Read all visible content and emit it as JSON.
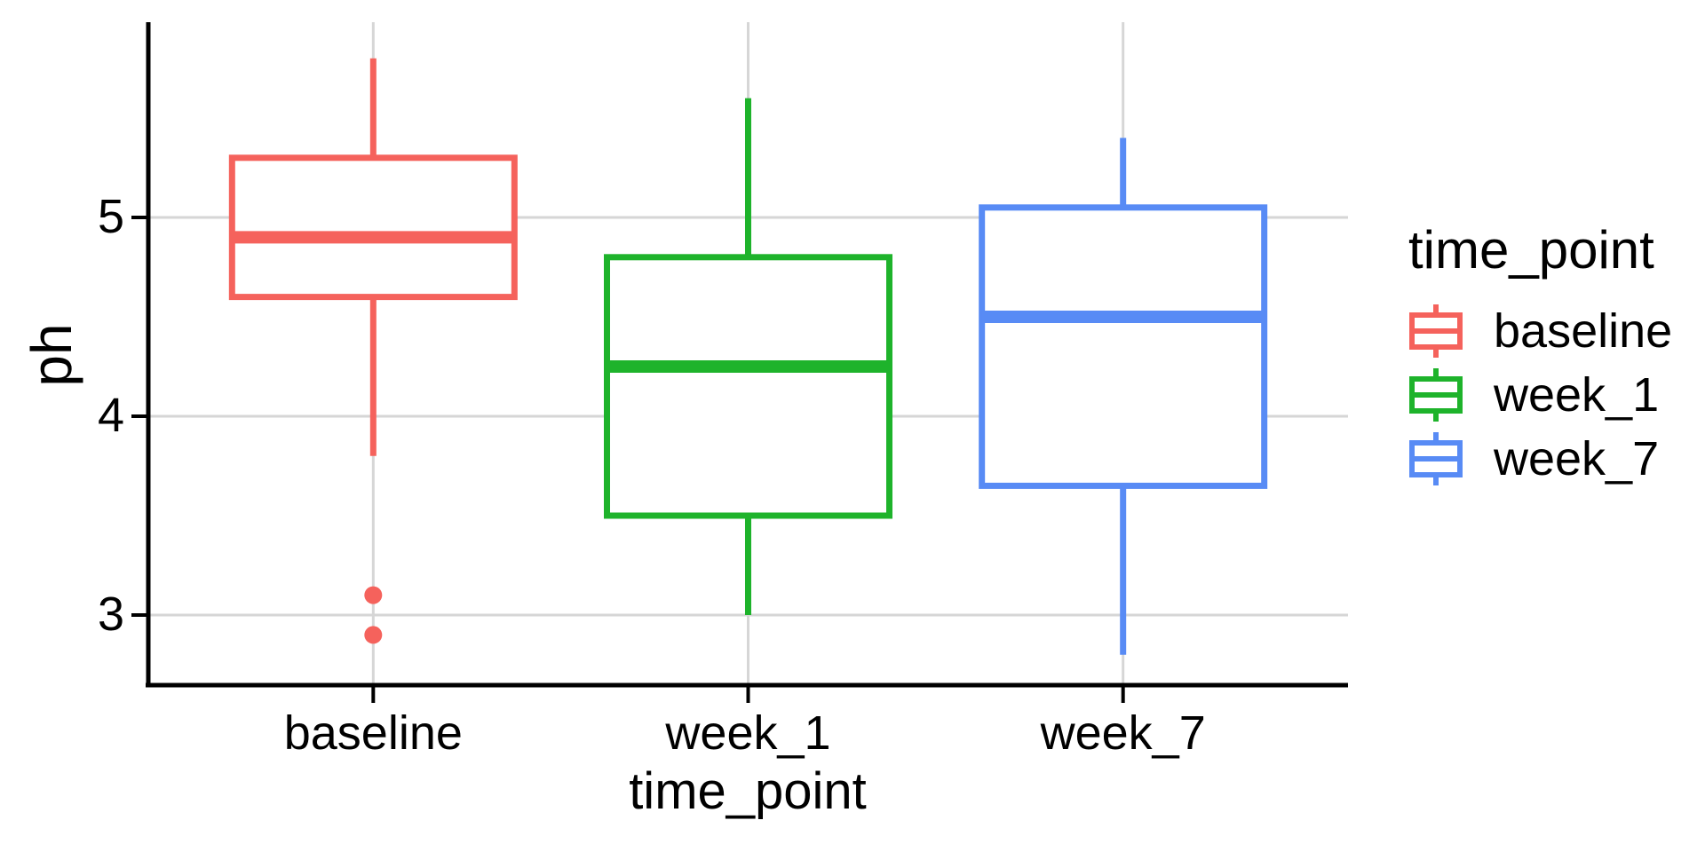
{
  "chart_data": {
    "type": "boxplot",
    "title": "",
    "xlabel": "time_point",
    "ylabel": "ph",
    "categories": [
      "baseline",
      "week_1",
      "week_7"
    ],
    "y_ticks": [
      3,
      4,
      5
    ],
    "ylim": [
      2.65,
      5.98
    ],
    "grid": {
      "horizontal": true,
      "vertical": true,
      "color": "#D6D6D6"
    },
    "legend": {
      "title": "time_point",
      "position": "right"
    },
    "series": [
      {
        "name": "baseline",
        "color": "#F5625C",
        "whisker_low": 3.8,
        "q1": 4.6,
        "median": 4.9,
        "q3": 5.3,
        "whisker_high": 5.8,
        "outliers": [
          3.1,
          2.9
        ]
      },
      {
        "name": "week_1",
        "color": "#1EB32B",
        "whisker_low": 3.0,
        "q1": 3.5,
        "median": 4.25,
        "q3": 4.8,
        "whisker_high": 5.6,
        "outliers": []
      },
      {
        "name": "week_7",
        "color": "#588BF5",
        "whisker_low": 2.8,
        "q1": 3.65,
        "median": 4.5,
        "q3": 5.05,
        "whisker_high": 5.4,
        "outliers": []
      }
    ]
  },
  "axes": {
    "y_tick_labels": [
      "5",
      "4",
      "3"
    ],
    "x_tick_labels": [
      "baseline",
      "week_1",
      "week_7"
    ]
  },
  "style": {
    "axis_color": "#000000",
    "grid_color": "#D6D6D6",
    "background": "#ffffff"
  }
}
